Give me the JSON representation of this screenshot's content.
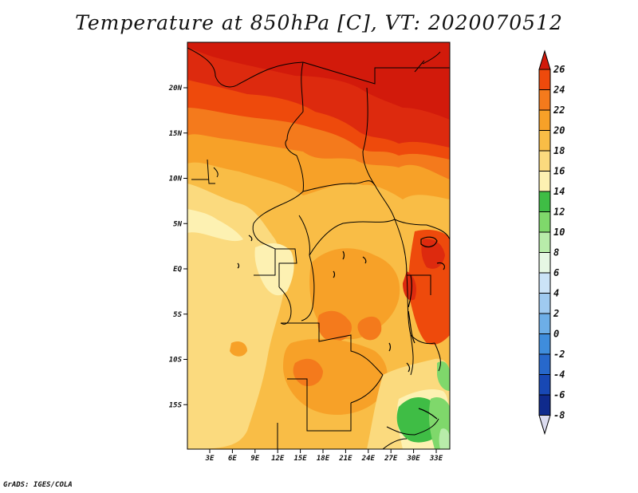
{
  "title": "Temperature at 850hPa [C], VT: 2020070512",
  "credit": "GrADS: IGES/COLA",
  "map": {
    "lat_labels": [
      "20N",
      "15N",
      "10N",
      "5N",
      "EQ",
      "5S",
      "10S",
      "15S"
    ],
    "lon_labels": [
      "3E",
      "6E",
      "9E",
      "12E",
      "15E",
      "18E",
      "21E",
      "24E",
      "27E",
      "30E",
      "33E"
    ]
  },
  "colorbar": {
    "levels": [
      "26",
      "24",
      "22",
      "20",
      "18",
      "16",
      "14",
      "12",
      "10",
      "8",
      "6",
      "4",
      "2",
      "0",
      "-2",
      "-4",
      "-6",
      "-8"
    ],
    "colors": [
      "#dd2a0e",
      "#ee4a0c",
      "#f47a1c",
      "#f7a128",
      "#f9bd46",
      "#fbda7e",
      "#fdf1b2",
      "#3fbd45",
      "#7fd86b",
      "#b8ecaa",
      "#e6f7e4",
      "#cbe3f7",
      "#9fcaf0",
      "#6daee7",
      "#3f8ddc",
      "#2768cb",
      "#1848b4",
      "#0f2a8c",
      "#0a0a55"
    ],
    "top_color": "#d21a0b",
    "bottom_color": "#dcdcf0"
  }
}
